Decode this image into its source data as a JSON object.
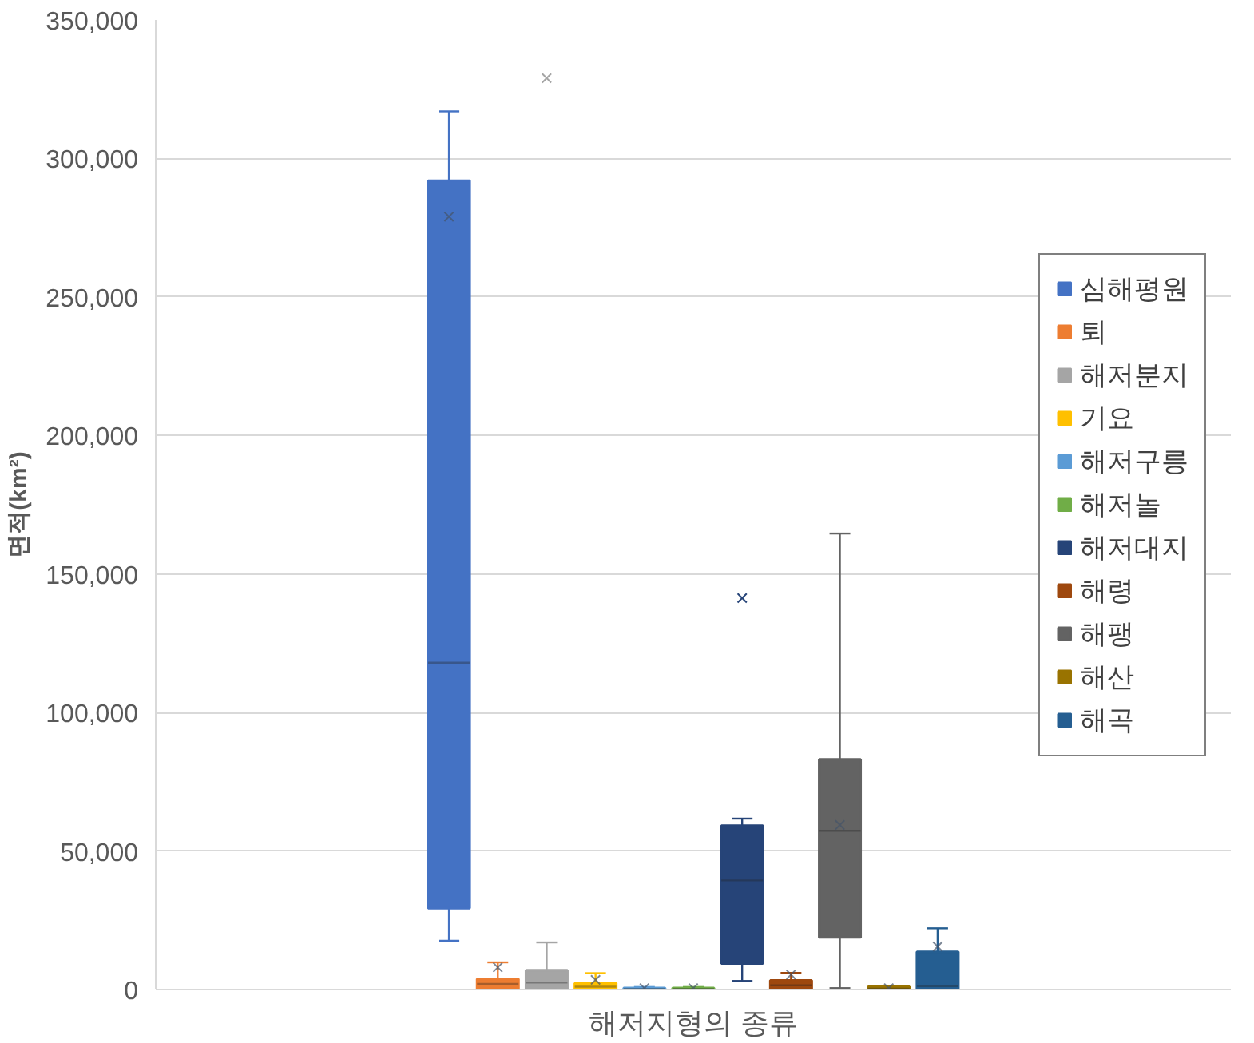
{
  "chart_data": {
    "type": "box",
    "ylabel": "면적(km²)",
    "categories": [
      "해저지형의 종류"
    ],
    "ylim": [
      0,
      350000
    ],
    "yticks": [
      {
        "value": 0,
        "label": "0"
      },
      {
        "value": 50000,
        "label": "50,000"
      },
      {
        "value": 100000,
        "label": "100,000"
      },
      {
        "value": 150000,
        "label": "150,000"
      },
      {
        "value": 200000,
        "label": "200,000"
      },
      {
        "value": 250000,
        "label": "250,000"
      },
      {
        "value": 300000,
        "label": "300,000"
      },
      {
        "value": 350000,
        "label": "350,000"
      }
    ],
    "grid": "y",
    "legend": "right",
    "series": [
      {
        "name": "심해평원",
        "color": "#4472c4",
        "boxes": [
          {
            "low": 17600,
            "q1": 29300,
            "median": 118000,
            "q3": 292000,
            "high": 317000,
            "mean": 279000
          }
        ]
      },
      {
        "name": "퇴",
        "color": "#ed7d31",
        "boxes": [
          {
            "low": 0,
            "q1": 300,
            "median": 2000,
            "q3": 3800,
            "high": 9800,
            "mean": 8000
          }
        ]
      },
      {
        "name": "해저분지",
        "color": "#a5a5a5",
        "boxes": [
          {
            "low": 0,
            "q1": 300,
            "median": 2500,
            "q3": 7000,
            "high": 17000,
            "outliers": [
              329000
            ]
          }
        ]
      },
      {
        "name": "기요",
        "color": "#ffc000",
        "boxes": [
          {
            "low": 0,
            "q1": 200,
            "median": 1000,
            "q3": 2300,
            "high": 5900,
            "mean": 3500
          }
        ]
      },
      {
        "name": "해저구릉",
        "color": "#5b9bd5",
        "boxes": [
          {
            "low": 0,
            "q1": 0,
            "median": 200,
            "q3": 600,
            "high": 900,
            "mean": 500
          }
        ]
      },
      {
        "name": "해저놀",
        "color": "#70ad47",
        "boxes": [
          {
            "low": 0,
            "q1": 0,
            "median": 200,
            "q3": 600,
            "high": 900,
            "mean": 500
          }
        ]
      },
      {
        "name": "해저대지",
        "color": "#264478",
        "boxes": [
          {
            "low": 3100,
            "q1": 9400,
            "median": 39400,
            "q3": 59200,
            "high": 61700,
            "outliers": [
              141300
            ]
          }
        ]
      },
      {
        "name": "해령",
        "color": "#9e480e",
        "boxes": [
          {
            "low": 0,
            "q1": 300,
            "median": 1500,
            "q3": 3300,
            "high": 6000,
            "mean": 5400
          }
        ]
      },
      {
        "name": "해팽",
        "color": "#636363",
        "boxes": [
          {
            "low": 500,
            "q1": 18800,
            "median": 57300,
            "q3": 83100,
            "high": 164600,
            "mean": 59400
          }
        ]
      },
      {
        "name": "해산",
        "color": "#997300",
        "boxes": [
          {
            "low": 0,
            "q1": 0,
            "median": 300,
            "q3": 1000,
            "high": 1200,
            "mean": 500
          }
        ]
      },
      {
        "name": "해곡",
        "color": "#255e91",
        "boxes": [
          {
            "low": 0,
            "q1": 300,
            "median": 1200,
            "q3": 13600,
            "high": 22100,
            "mean": 15500
          }
        ]
      }
    ]
  }
}
